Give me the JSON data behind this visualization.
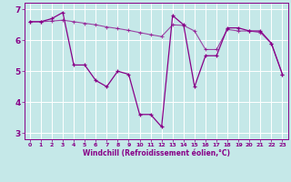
{
  "xlabel": "Windchill (Refroidissement éolien,°C)",
  "bg_color": "#c5e8e8",
  "grid_color": "#ffffff",
  "line_color": "#880088",
  "xlim": [
    -0.5,
    23.5
  ],
  "ylim": [
    2.8,
    7.2
  ],
  "yticks": [
    3,
    4,
    5,
    6,
    7
  ],
  "xticks": [
    0,
    1,
    2,
    3,
    4,
    5,
    6,
    7,
    8,
    9,
    10,
    11,
    12,
    13,
    14,
    15,
    16,
    17,
    18,
    19,
    20,
    21,
    22,
    23
  ],
  "line1_x": [
    0,
    1,
    2,
    3,
    4,
    5,
    6,
    7,
    8,
    9,
    10,
    11,
    12,
    13,
    14,
    15,
    16,
    17,
    18,
    19,
    20,
    21,
    22,
    23
  ],
  "line1_y": [
    6.6,
    6.6,
    6.7,
    6.9,
    5.2,
    5.2,
    4.7,
    4.5,
    5.0,
    4.9,
    3.6,
    3.6,
    3.2,
    6.8,
    6.5,
    4.5,
    5.5,
    5.5,
    6.4,
    6.4,
    6.3,
    6.3,
    5.9,
    4.9
  ],
  "line2_x": [
    0,
    1,
    2,
    3,
    4,
    5,
    6,
    7,
    8,
    9,
    10,
    11,
    12,
    13,
    14,
    15,
    16,
    17,
    18,
    19,
    20,
    21,
    22,
    23
  ],
  "line2_y": [
    6.6,
    6.6,
    6.62,
    6.65,
    6.6,
    6.55,
    6.5,
    6.43,
    6.38,
    6.32,
    6.25,
    6.18,
    6.12,
    6.5,
    6.48,
    6.3,
    5.7,
    5.7,
    6.35,
    6.3,
    6.3,
    6.25,
    5.9,
    4.9
  ]
}
